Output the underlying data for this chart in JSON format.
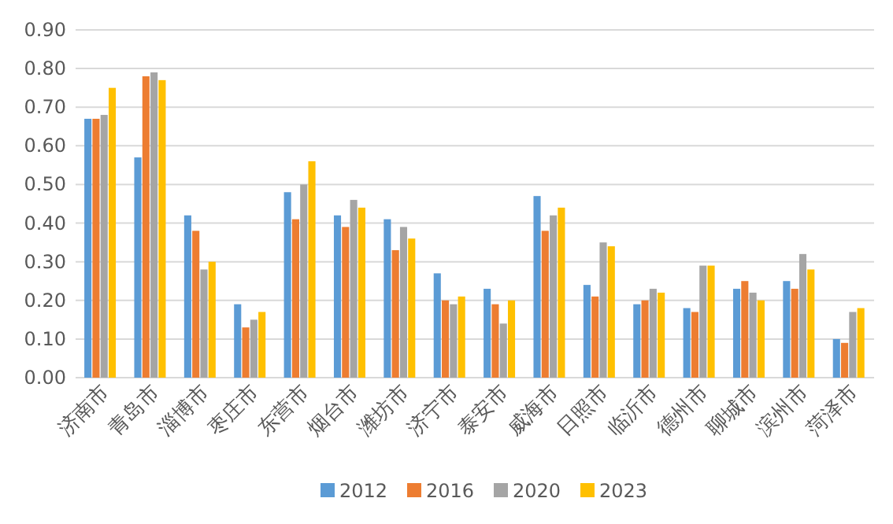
{
  "chart_data": {
    "type": "bar",
    "categories": [
      "济南市",
      "青岛市",
      "淄博市",
      "枣庄市",
      "东营市",
      "烟台市",
      "潍坊市",
      "济宁市",
      "泰安市",
      "威海市",
      "日照市",
      "临沂市",
      "德州市",
      "聊城市",
      "滨州市",
      "菏泽市"
    ],
    "series": [
      {
        "name": "2012",
        "color": "#5b9bd5",
        "values": [
          0.67,
          0.57,
          0.42,
          0.19,
          0.48,
          0.42,
          0.41,
          0.27,
          0.23,
          0.47,
          0.24,
          0.19,
          0.18,
          0.23,
          0.25,
          0.1
        ]
      },
      {
        "name": "2016",
        "color": "#ed7d31",
        "values": [
          0.67,
          0.78,
          0.38,
          0.13,
          0.41,
          0.39,
          0.33,
          0.2,
          0.19,
          0.38,
          0.21,
          0.2,
          0.17,
          0.25,
          0.23,
          0.09
        ]
      },
      {
        "name": "2020",
        "color": "#a5a5a5",
        "values": [
          0.68,
          0.79,
          0.28,
          0.15,
          0.5,
          0.46,
          0.39,
          0.19,
          0.14,
          0.42,
          0.35,
          0.23,
          0.29,
          0.22,
          0.32,
          0.17
        ]
      },
      {
        "name": "2023",
        "color": "#ffc000",
        "values": [
          0.75,
          0.77,
          0.3,
          0.17,
          0.56,
          0.44,
          0.36,
          0.21,
          0.2,
          0.44,
          0.34,
          0.22,
          0.29,
          0.2,
          0.28,
          0.18
        ]
      }
    ],
    "ylim": [
      0,
      0.9
    ],
    "yticks": [
      {
        "value": 0,
        "label": "0.00"
      },
      {
        "value": 0.1,
        "label": "0.10"
      },
      {
        "value": 0.2,
        "label": "0.20"
      },
      {
        "value": 0.3,
        "label": "0.30"
      },
      {
        "value": 0.4,
        "label": "0.40"
      },
      {
        "value": 0.5,
        "label": "0.50"
      },
      {
        "value": 0.6,
        "label": "0.60"
      },
      {
        "value": 0.7,
        "label": "0.70"
      },
      {
        "value": 0.8,
        "label": "0.80"
      },
      {
        "value": 0.9,
        "label": "0.90"
      }
    ],
    "grid": "y",
    "legend": "bottom"
  }
}
